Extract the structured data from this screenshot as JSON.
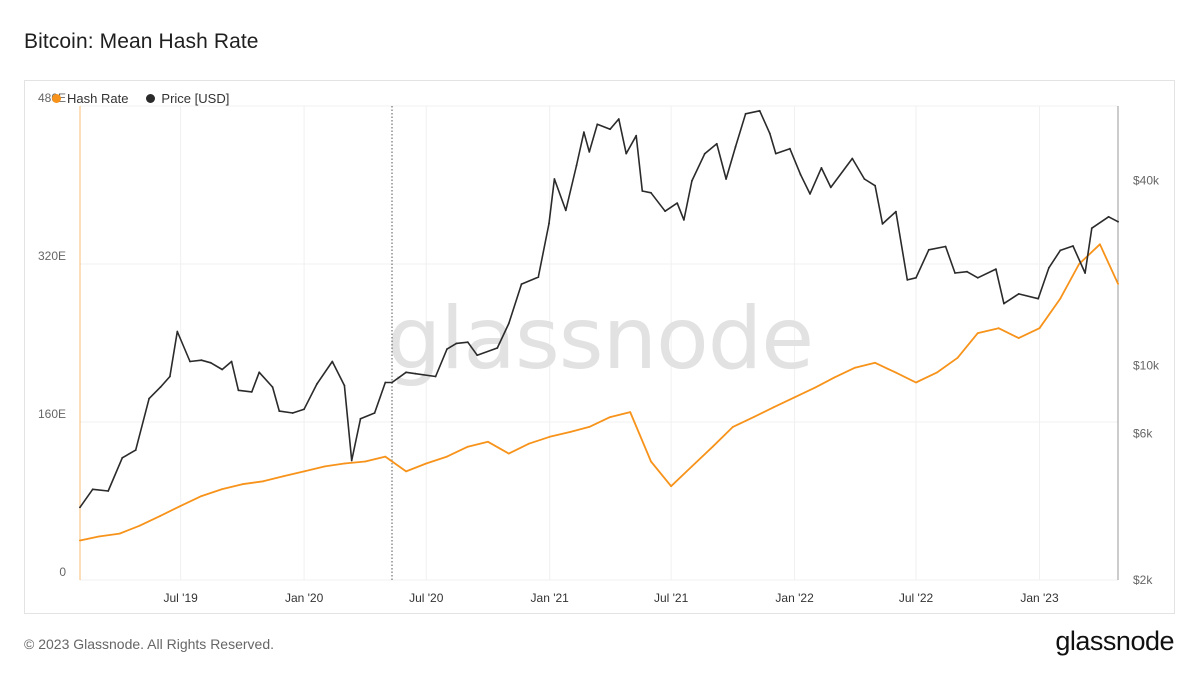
{
  "title": "Bitcoin: Mean Hash Rate",
  "footer": {
    "copyright": "© 2023 Glassnode. All Rights Reserved.",
    "logo_text": "glassnode"
  },
  "watermark": "glassnode",
  "colors": {
    "hash_rate": "#f7931a",
    "price": "#2b2b2b",
    "grid": "#f0f0f0",
    "axis_text": "#666666"
  },
  "chart_data": {
    "type": "line",
    "title": "Bitcoin: Mean Hash Rate",
    "x_range": [
      "2019-02-01",
      "2023-04-28"
    ],
    "x_ticks": [
      {
        "date": "2019-07-01",
        "label": "Jul '19"
      },
      {
        "date": "2020-01-01",
        "label": "Jan '20"
      },
      {
        "date": "2020-07-01",
        "label": "Jul '20"
      },
      {
        "date": "2021-01-01",
        "label": "Jan '21"
      },
      {
        "date": "2021-07-01",
        "label": "Jul '21"
      },
      {
        "date": "2022-01-01",
        "label": "Jan '22"
      },
      {
        "date": "2022-07-01",
        "label": "Jul '22"
      },
      {
        "date": "2023-01-01",
        "label": "Jan '23"
      }
    ],
    "y_left": {
      "scale": "linear",
      "range": [
        0,
        480000000
      ],
      "ticks": [
        {
          "value": 0,
          "label": "0"
        },
        {
          "value": 160000000,
          "label": "160E"
        },
        {
          "value": 320000000,
          "label": "320E"
        },
        {
          "value": 480000000,
          "label": "480E"
        }
      ]
    },
    "y_right": {
      "scale": "log",
      "range": [
        2000,
        70000
      ],
      "ticks": [
        {
          "value": 2000,
          "label": "$2k"
        },
        {
          "value": 6000,
          "label": "$6k"
        },
        {
          "value": 10000,
          "label": "$10k"
        },
        {
          "value": 40000,
          "label": "$40k"
        }
      ]
    },
    "vline": {
      "date": "2020-05-11",
      "style": "dotted"
    },
    "legend_position": "top-left",
    "grid": true,
    "series": [
      {
        "name": "Hash Rate",
        "axis": "left",
        "color": "#f7931a",
        "points": [
          [
            "2019-02-01",
            40000000
          ],
          [
            "2019-03-01",
            44000000
          ],
          [
            "2019-04-01",
            47000000
          ],
          [
            "2019-05-01",
            55000000
          ],
          [
            "2019-06-01",
            65000000
          ],
          [
            "2019-07-01",
            75000000
          ],
          [
            "2019-08-01",
            85000000
          ],
          [
            "2019-09-01",
            92000000
          ],
          [
            "2019-10-01",
            97000000
          ],
          [
            "2019-11-01",
            100000000
          ],
          [
            "2019-12-01",
            105000000
          ],
          [
            "2020-01-01",
            110000000
          ],
          [
            "2020-02-01",
            115000000
          ],
          [
            "2020-03-01",
            118000000
          ],
          [
            "2020-04-01",
            120000000
          ],
          [
            "2020-05-01",
            125000000
          ],
          [
            "2020-06-01",
            110000000
          ],
          [
            "2020-07-01",
            118000000
          ],
          [
            "2020-08-01",
            125000000
          ],
          [
            "2020-09-01",
            135000000
          ],
          [
            "2020-10-01",
            140000000
          ],
          [
            "2020-11-01",
            128000000
          ],
          [
            "2020-12-01",
            138000000
          ],
          [
            "2021-01-01",
            145000000
          ],
          [
            "2021-02-01",
            150000000
          ],
          [
            "2021-03-01",
            155000000
          ],
          [
            "2021-04-01",
            165000000
          ],
          [
            "2021-05-01",
            170000000
          ],
          [
            "2021-06-01",
            120000000
          ],
          [
            "2021-07-01",
            95000000
          ],
          [
            "2021-08-01",
            115000000
          ],
          [
            "2021-09-01",
            135000000
          ],
          [
            "2021-10-01",
            155000000
          ],
          [
            "2021-11-01",
            165000000
          ],
          [
            "2021-12-01",
            175000000
          ],
          [
            "2022-01-01",
            185000000
          ],
          [
            "2022-02-01",
            195000000
          ],
          [
            "2022-03-01",
            205000000
          ],
          [
            "2022-04-01",
            215000000
          ],
          [
            "2022-05-01",
            220000000
          ],
          [
            "2022-06-01",
            210000000
          ],
          [
            "2022-07-01",
            200000000
          ],
          [
            "2022-08-01",
            210000000
          ],
          [
            "2022-09-01",
            225000000
          ],
          [
            "2022-10-01",
            250000000
          ],
          [
            "2022-11-01",
            255000000
          ],
          [
            "2022-12-01",
            245000000
          ],
          [
            "2023-01-01",
            255000000
          ],
          [
            "2023-02-01",
            285000000
          ],
          [
            "2023-03-01",
            320000000
          ],
          [
            "2023-04-01",
            340000000
          ],
          [
            "2023-04-28",
            300000000
          ]
        ]
      },
      {
        "name": "Price [USD]",
        "axis": "right",
        "color": "#2b2b2b",
        "points": [
          [
            "2019-02-01",
            3450
          ],
          [
            "2019-02-20",
            3950
          ],
          [
            "2019-03-15",
            3900
          ],
          [
            "2019-04-05",
            5000
          ],
          [
            "2019-04-25",
            5300
          ],
          [
            "2019-05-15",
            7800
          ],
          [
            "2019-06-01",
            8500
          ],
          [
            "2019-06-15",
            9200
          ],
          [
            "2019-06-26",
            12900
          ],
          [
            "2019-07-15",
            10300
          ],
          [
            "2019-08-01",
            10400
          ],
          [
            "2019-08-15",
            10200
          ],
          [
            "2019-09-01",
            9700
          ],
          [
            "2019-09-15",
            10300
          ],
          [
            "2019-09-25",
            8300
          ],
          [
            "2019-10-15",
            8200
          ],
          [
            "2019-10-26",
            9500
          ],
          [
            "2019-11-15",
            8500
          ],
          [
            "2019-11-25",
            7100
          ],
          [
            "2019-12-15",
            7000
          ],
          [
            "2020-01-01",
            7200
          ],
          [
            "2020-01-20",
            8700
          ],
          [
            "2020-02-12",
            10300
          ],
          [
            "2020-03-01",
            8600
          ],
          [
            "2020-03-12",
            4900
          ],
          [
            "2020-03-25",
            6700
          ],
          [
            "2020-04-15",
            7000
          ],
          [
            "2020-05-01",
            8800
          ],
          [
            "2020-05-11",
            8800
          ],
          [
            "2020-06-01",
            9500
          ],
          [
            "2020-06-15",
            9400
          ],
          [
            "2020-07-15",
            9200
          ],
          [
            "2020-08-01",
            11300
          ],
          [
            "2020-08-15",
            11800
          ],
          [
            "2020-09-01",
            11900
          ],
          [
            "2020-09-15",
            10800
          ],
          [
            "2020-10-15",
            11400
          ],
          [
            "2020-11-01",
            13700
          ],
          [
            "2020-11-20",
            18400
          ],
          [
            "2020-12-15",
            19400
          ],
          [
            "2020-12-31",
            29000
          ],
          [
            "2021-01-08",
            40500
          ],
          [
            "2021-01-25",
            32000
          ],
          [
            "2021-02-10",
            44800
          ],
          [
            "2021-02-21",
            57500
          ],
          [
            "2021-03-01",
            49600
          ],
          [
            "2021-03-13",
            61000
          ],
          [
            "2021-04-01",
            58800
          ],
          [
            "2021-04-14",
            63500
          ],
          [
            "2021-04-25",
            49000
          ],
          [
            "2021-05-10",
            56000
          ],
          [
            "2021-05-19",
            37000
          ],
          [
            "2021-06-01",
            36500
          ],
          [
            "2021-06-22",
            31800
          ],
          [
            "2021-07-10",
            33800
          ],
          [
            "2021-07-20",
            29800
          ],
          [
            "2021-08-01",
            39900
          ],
          [
            "2021-08-20",
            48900
          ],
          [
            "2021-09-07",
            52700
          ],
          [
            "2021-09-21",
            40500
          ],
          [
            "2021-10-05",
            51500
          ],
          [
            "2021-10-20",
            66000
          ],
          [
            "2021-11-10",
            67500
          ],
          [
            "2021-11-25",
            57000
          ],
          [
            "2021-12-04",
            49000
          ],
          [
            "2021-12-25",
            50800
          ],
          [
            "2022-01-10",
            41800
          ],
          [
            "2022-01-24",
            36200
          ],
          [
            "2022-02-10",
            44000
          ],
          [
            "2022-02-24",
            38000
          ],
          [
            "2022-03-28",
            47200
          ],
          [
            "2022-04-15",
            40500
          ],
          [
            "2022-05-01",
            38500
          ],
          [
            "2022-05-12",
            28900
          ],
          [
            "2022-06-01",
            31700
          ],
          [
            "2022-06-18",
            19000
          ],
          [
            "2022-07-01",
            19300
          ],
          [
            "2022-07-20",
            23800
          ],
          [
            "2022-08-14",
            24400
          ],
          [
            "2022-08-28",
            20000
          ],
          [
            "2022-09-15",
            20200
          ],
          [
            "2022-10-01",
            19300
          ],
          [
            "2022-10-28",
            20600
          ],
          [
            "2022-11-09",
            15900
          ],
          [
            "2022-12-01",
            17100
          ],
          [
            "2022-12-30",
            16500
          ],
          [
            "2023-01-15",
            20800
          ],
          [
            "2023-02-01",
            23700
          ],
          [
            "2023-02-20",
            24500
          ],
          [
            "2023-03-10",
            20000
          ],
          [
            "2023-03-20",
            28000
          ],
          [
            "2023-04-14",
            30500
          ],
          [
            "2023-04-28",
            29400
          ]
        ]
      }
    ]
  }
}
